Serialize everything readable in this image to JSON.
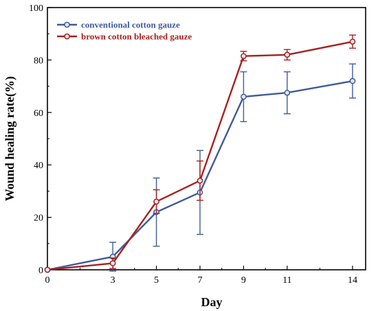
{
  "chart_data": {
    "type": "line",
    "title": "",
    "xlabel": "Day",
    "ylabel": "Wound healing rate(%)",
    "x": [
      0,
      3,
      5,
      7,
      9,
      11,
      14
    ],
    "xlim": [
      0,
      14.6
    ],
    "ylim": [
      0,
      100
    ],
    "x_ticks": [
      0,
      3,
      5,
      7,
      9,
      11,
      14
    ],
    "y_ticks": [
      0,
      20,
      40,
      60,
      80,
      100
    ],
    "grid": false,
    "legend_position": "top-left",
    "series": [
      {
        "name": "conventional cotton gauze",
        "color": "#3f5a9a",
        "values": [
          0,
          5,
          22,
          29.5,
          66,
          67.5,
          72
        ],
        "errors": [
          0,
          5.5,
          13,
          16,
          9.5,
          8,
          6.5
        ]
      },
      {
        "name": "brown cotton bleached gauze",
        "color": "#a81f1f",
        "values": [
          0,
          2.5,
          26,
          34,
          81.5,
          82,
          87
        ],
        "errors": [
          0,
          2,
          4.5,
          7.5,
          1.8,
          2,
          2.5
        ]
      }
    ]
  }
}
